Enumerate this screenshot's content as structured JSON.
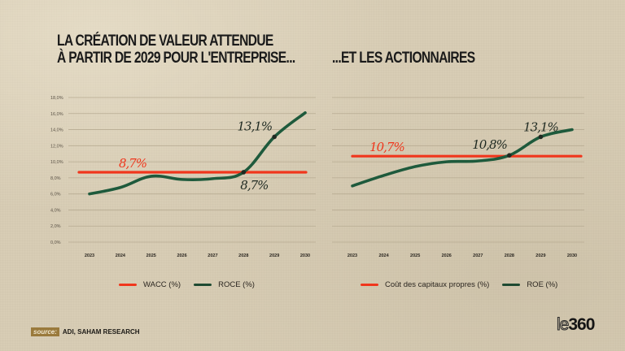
{
  "titles": {
    "left": [
      "La création de valeur attendue",
      "à partir de 2029 pour l'entreprise..."
    ],
    "right": "...et les actionnaires"
  },
  "colors": {
    "red": "#f0361c",
    "green": "#1e5a3c",
    "grid": "#b7ab92",
    "annotation_dark": "#1f2a22"
  },
  "chart_data": [
    {
      "type": "line",
      "title": "La création de valeur attendue à partir de 2029 pour l'entreprise...",
      "categories": [
        "2023",
        "2024",
        "2025",
        "2026",
        "2027",
        "2028",
        "2029",
        "2030"
      ],
      "y_ticks": [
        "0,0%",
        "2,0%",
        "4,0%",
        "6,0%",
        "8,0%",
        "10,0%",
        "12,0%",
        "14,0%",
        "16,0%",
        "18,0%"
      ],
      "ylim": [
        0,
        18
      ],
      "grid": true,
      "series": [
        {
          "name": "WACC (%)",
          "color": "red",
          "values": [
            8.7,
            8.7,
            8.7,
            8.7,
            8.7,
            8.7,
            8.7,
            8.7
          ]
        },
        {
          "name": "ROCE (%)",
          "color": "green",
          "values": [
            6.0,
            6.8,
            8.2,
            7.8,
            7.9,
            8.7,
            13.1,
            16.1
          ]
        }
      ],
      "annotations": [
        {
          "text": "8,7%",
          "series": 0,
          "index": 1.4,
          "value": 8.7,
          "color": "red",
          "pos": "above"
        },
        {
          "text": "8,7%",
          "series": 1,
          "index": 5,
          "value": 8.7,
          "color": "dark",
          "pos": "below-right",
          "marker": true
        },
        {
          "text": "13,1%",
          "series": 1,
          "index": 6,
          "value": 13.1,
          "color": "dark",
          "pos": "above-left",
          "marker": true
        }
      ],
      "legend": [
        "WACC (%)",
        "ROCE (%)"
      ],
      "legend_position": "bottom"
    },
    {
      "type": "line",
      "title": "...et les actionnaires",
      "categories": [
        "2023",
        "2024",
        "2025",
        "2026",
        "2027",
        "2028",
        "2029",
        "2030"
      ],
      "ylim": [
        0,
        18
      ],
      "grid": true,
      "series": [
        {
          "name": "Coût des capitaux propres (%)",
          "color": "red",
          "values": [
            10.7,
            10.7,
            10.7,
            10.7,
            10.7,
            10.7,
            10.7,
            10.7
          ]
        },
        {
          "name": "ROE (%)",
          "color": "green",
          "values": [
            7.0,
            8.3,
            9.4,
            10.0,
            10.1,
            10.8,
            13.1,
            14.0
          ]
        }
      ],
      "annotations": [
        {
          "text": "10,7%",
          "series": 0,
          "index": 1.1,
          "value": 10.7,
          "color": "red",
          "pos": "above"
        },
        {
          "text": "10,8%",
          "series": 1,
          "index": 5,
          "value": 10.8,
          "color": "dark",
          "pos": "above-left",
          "marker": true
        },
        {
          "text": "13,1%",
          "series": 1,
          "index": 6,
          "value": 13.1,
          "color": "dark",
          "pos": "above",
          "marker": true
        }
      ],
      "legend": [
        "Coût des capitaux propres (%)",
        "ROE (%)"
      ],
      "legend_position": "bottom"
    }
  ],
  "source": {
    "label": "source:",
    "text": "ADI, SAHAM RESEARCH"
  },
  "logo": {
    "part1": "le",
    "part2": "360"
  }
}
